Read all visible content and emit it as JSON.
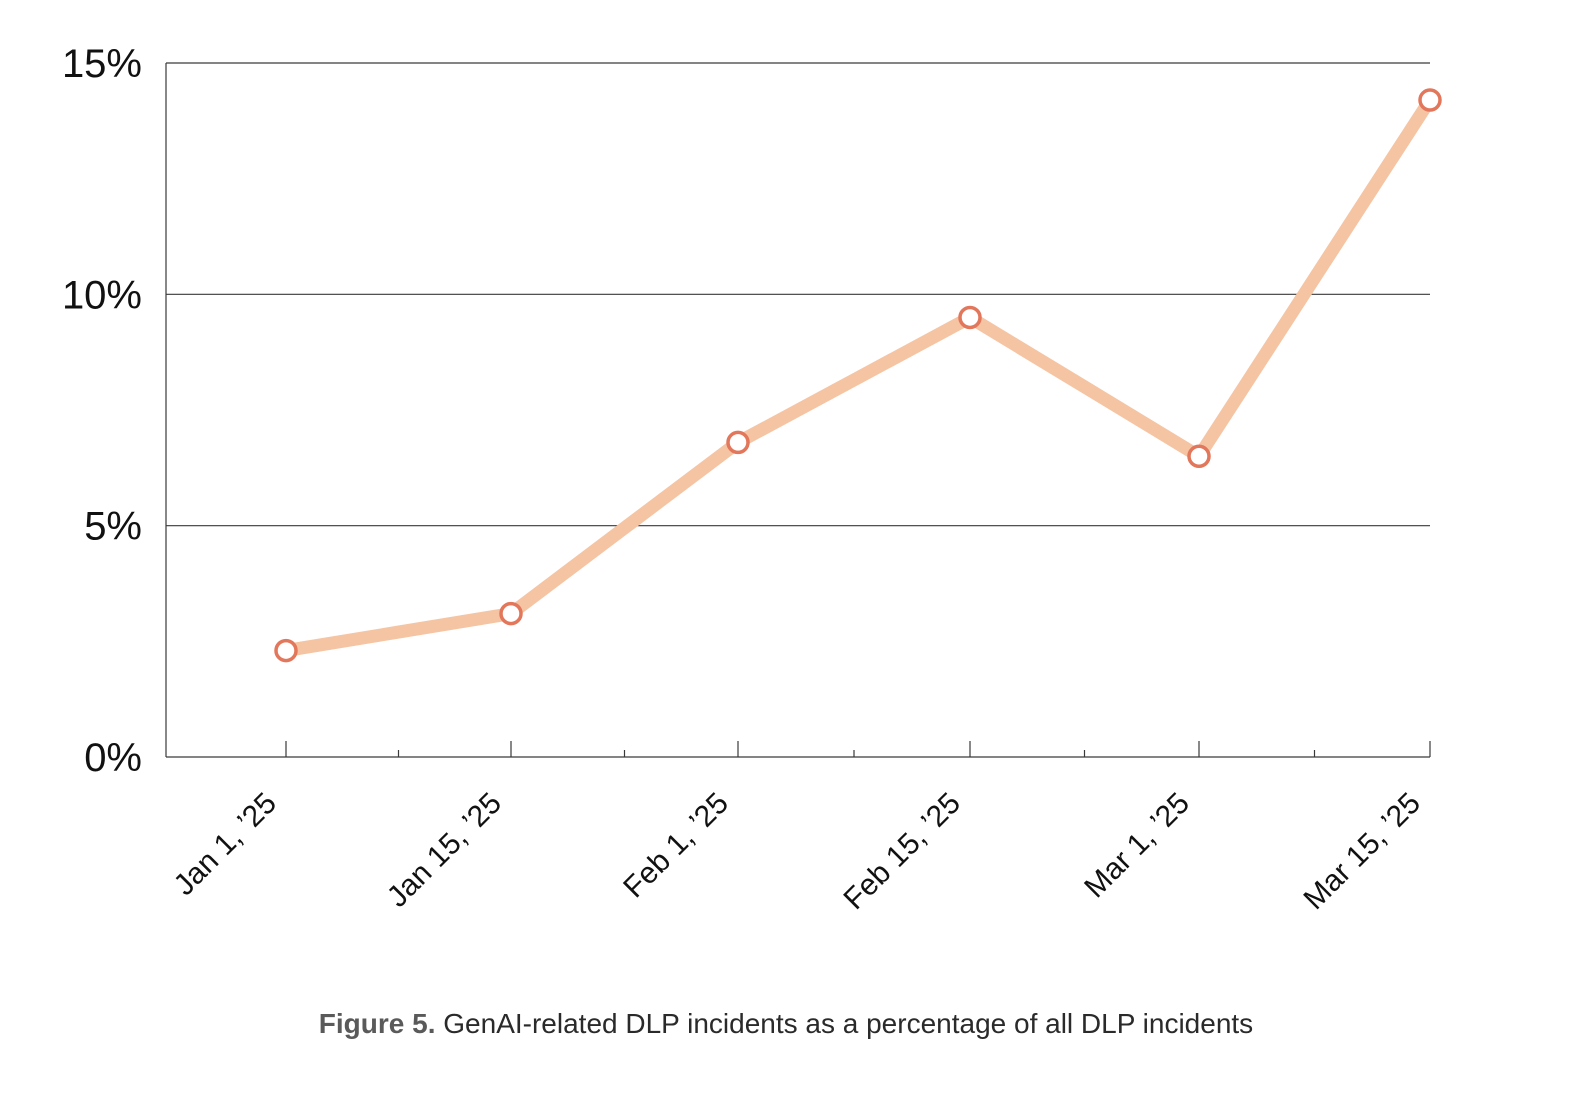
{
  "chart_data": {
    "type": "line",
    "x": [
      "Jan 1, ’25",
      "Jan 15, ’25",
      "Feb 1, ’25",
      "Feb 15, ’25",
      "Mar 1, ’25",
      "Mar 15, ’25"
    ],
    "series": [
      {
        "values": [
          2.3,
          3.1,
          6.8,
          9.5,
          6.5,
          14.2
        ]
      }
    ],
    "yticks": [
      "0%",
      "5%",
      "10%",
      "15%"
    ],
    "ylim": [
      0,
      15
    ],
    "grid": true,
    "line_color": "#f5c4a3",
    "marker_color": "#e2775b"
  },
  "caption": {
    "label": "Figure 5.",
    "text": " GenAI-related DLP incidents as a percentage of all DLP incidents"
  }
}
